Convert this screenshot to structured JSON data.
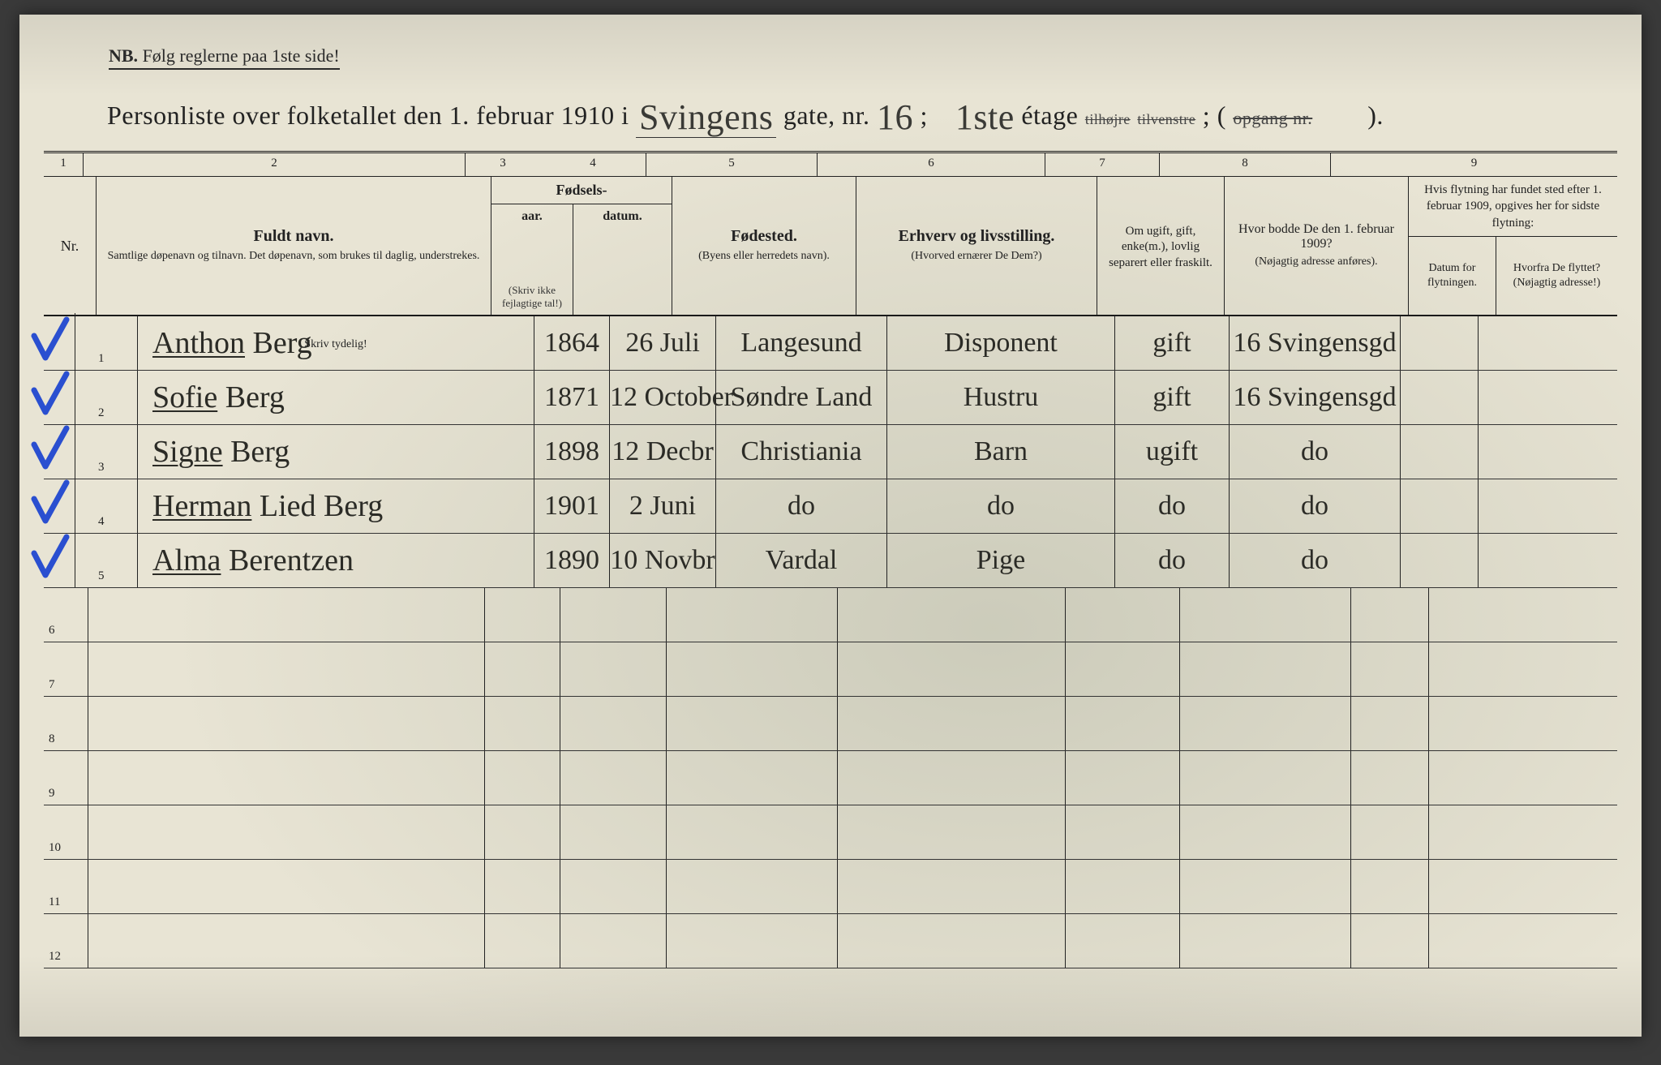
{
  "nb_prefix": "NB.",
  "nb_text": "Følg reglerne paa 1ste side!",
  "title": {
    "lead": "Personliste over folketallet den 1. februar 1910 i",
    "street": "Svingens",
    "gate_label": "gate, nr.",
    "gate_nr": "16",
    "sep": ";",
    "etage": "1ste",
    "etage_label": "étage",
    "strike1a": "tilhøjre",
    "strike1b": "tilvenstre",
    "sep2": "; (",
    "strike2": "opgang nr.",
    "tail": ")."
  },
  "colnums": [
    "1",
    "2",
    "3",
    "4",
    "5",
    "6",
    "7",
    "8",
    "9"
  ],
  "headers": {
    "nr": "Nr.",
    "name_main": "Fuldt navn.",
    "name_sub": "Samtlige døpenavn og tilnavn. Det døpenavn, som brukes til daglig, understrekes.",
    "fodsels": "Fødsels-",
    "aar": "aar.",
    "datum": "datum.",
    "aar_hint": "(Skriv ikke fejlagtige tal!)",
    "fodested": "Fødested.",
    "fodested_sub": "(Byens eller herredets navn).",
    "erhverv": "Erhverv og livsstilling.",
    "erhverv_sub": "(Hvorved ernærer De Dem?)",
    "status": "Om ugift, gift, enke(m.), lovlig separert eller fraskilt.",
    "addr1909": "Hvor bodde De den 1. februar 1909?",
    "addr1909_sub": "(Nøjagtig adresse anføres).",
    "col9_top": "Hvis flytning har fundet sted efter 1. februar 1909, opgives her for sidste flytning:",
    "col9_a": "Datum for flytningen.",
    "col9_b": "Hvorfra De flyttet? (Nøjagtig adresse!)",
    "skriv": "Skriv tydelig!"
  },
  "rows": [
    {
      "nr": "1",
      "name_u": "Anthon",
      "name_rest": " Berg",
      "yr": "1864",
      "dt": "26 Juli",
      "place": "Langesund",
      "occ": "Disponent",
      "stat": "gift",
      "addr": "16 Svingensgd"
    },
    {
      "nr": "2",
      "name_u": "Sofie",
      "name_rest": " Berg",
      "yr": "1871",
      "dt": "12 October",
      "place": "Søndre Land",
      "occ": "Hustru",
      "stat": "gift",
      "addr": "16 Svingensgd"
    },
    {
      "nr": "3",
      "name_u": "Signe",
      "name_rest": " Berg",
      "yr": "1898",
      "dt": "12 Decbr",
      "place": "Christiania",
      "occ": "Barn",
      "stat": "ugift",
      "addr": "do"
    },
    {
      "nr": "4",
      "name_u": "Herman",
      "name_rest": " Lied Berg",
      "yr": "1901",
      "dt": "2 Juni",
      "place": "do",
      "occ": "do",
      "stat": "do",
      "addr": "do"
    },
    {
      "nr": "5",
      "name_u": "Alma",
      "name_rest": " Berentzen",
      "yr": "1890",
      "dt": "10 Novbr",
      "place": "Vardal",
      "occ": "Pige",
      "stat": "do",
      "addr": "do"
    },
    {
      "nr": "6"
    },
    {
      "nr": "7"
    },
    {
      "nr": "8"
    },
    {
      "nr": "9"
    },
    {
      "nr": "10"
    },
    {
      "nr": "11"
    },
    {
      "nr": "12"
    }
  ],
  "check_color": "#2a4fd0"
}
